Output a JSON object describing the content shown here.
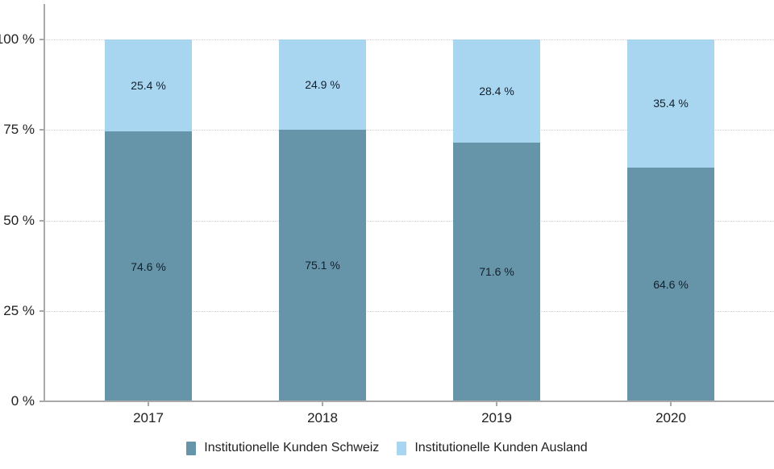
{
  "chart_data": {
    "type": "bar",
    "stacked": true,
    "orientation": "vertical",
    "categories": [
      "2017",
      "2018",
      "2019",
      "2020"
    ],
    "series": [
      {
        "name": "Institutionelle Kunden Schweiz",
        "color": "#6694a8",
        "values": [
          74.6,
          75.1,
          71.6,
          64.6
        ]
      },
      {
        "name": "Institutionelle Kunden Ausland",
        "color": "#a8d6f0",
        "values": [
          25.4,
          24.9,
          28.4,
          35.4
        ]
      }
    ],
    "data_label_suffix": " %",
    "title": "",
    "xlabel": "",
    "ylabel": "",
    "ylim": [
      0,
      100
    ],
    "yticks": [
      {
        "value": 0,
        "label": "0 %"
      },
      {
        "value": 25,
        "label": "25 %"
      },
      {
        "value": 50,
        "label": "50 %"
      },
      {
        "value": 75,
        "label": "75 %"
      },
      {
        "value": 100,
        "label": "100 %"
      }
    ],
    "grid": "horizontal-dotted",
    "legend_position": "bottom-center"
  },
  "colors": {
    "axis": "#a9a9a9",
    "gridline": "#cfcfcf",
    "axis_text": "#212121",
    "bar_label_text": "#14202b",
    "background": "#ffffff"
  }
}
